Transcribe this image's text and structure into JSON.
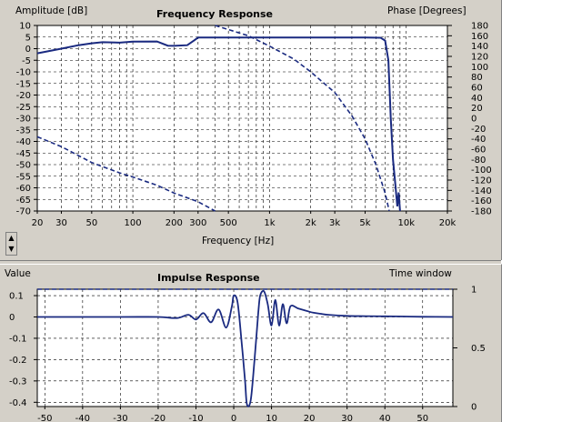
{
  "chart_data": [
    {
      "type": "line",
      "title": "Frequency Response",
      "ylabel": "Amplitude [dB]",
      "y2label": "Phase [Degrees]",
      "xlabel": "Frequency [Hz]",
      "xscale": "log",
      "xlim": [
        20,
        20000
      ],
      "ylim": [
        -70,
        10
      ],
      "y2lim": [
        -180,
        180
      ],
      "x_tick_labels": [
        "20",
        "30",
        "50",
        "100",
        "200",
        "300",
        "500",
        "1k",
        "2k",
        "3k",
        "5k",
        "10k",
        "20k"
      ],
      "x_tick_values": [
        20,
        30,
        50,
        100,
        200,
        300,
        500,
        1000,
        2000,
        3000,
        5000,
        10000,
        20000
      ],
      "y_tick_labels": [
        "10",
        "5",
        "0",
        "-5",
        "-10",
        "-15",
        "-20",
        "-25",
        "-30",
        "-35",
        "-40",
        "-45",
        "-50",
        "-55",
        "-60",
        "-65",
        "-70"
      ],
      "y2_tick_labels": [
        "180",
        "160",
        "140",
        "120",
        "100",
        "80",
        "60",
        "40",
        "20",
        "0",
        "-20",
        "-40",
        "-60",
        "-80",
        "-100",
        "-120",
        "-140",
        "-160",
        "-180"
      ],
      "grid": true,
      "series": [
        {
          "style": "solid",
          "axis": "left",
          "x": [
            20,
            30,
            40,
            50,
            60,
            80,
            100,
            150,
            180,
            200,
            250,
            280,
            300,
            400,
            500,
            700,
            1000,
            2000,
            3000,
            5000,
            6500,
            7000,
            7400,
            7700,
            8000,
            8300,
            8600,
            8800,
            9000
          ],
          "y": [
            -2,
            0,
            1.5,
            2.3,
            2.8,
            2.6,
            3,
            3.1,
            1.3,
            1.2,
            1.5,
            3.5,
            4.8,
            4.8,
            4.8,
            4.8,
            4.8,
            4.8,
            4.8,
            4.8,
            4.7,
            3.5,
            -5,
            -30,
            -48,
            -58,
            -68,
            -62,
            -70
          ]
        },
        {
          "style": "dashed",
          "axis": "right",
          "x": [
            400,
            500,
            700,
            1000,
            1500,
            2000,
            3000,
            4000,
            5000,
            6000,
            7000,
            7500
          ],
          "y": [
            180,
            172,
            160,
            140,
            115,
            90,
            50,
            5,
            -40,
            -90,
            -145,
            -180
          ]
        },
        {
          "style": "dashed",
          "axis": "right",
          "x": [
            20,
            30,
            50,
            80,
            100,
            150,
            200,
            300,
            400
          ],
          "y": [
            -36,
            -55,
            -86,
            -106,
            -114,
            -130,
            -145,
            -162,
            -180
          ]
        }
      ]
    },
    {
      "type": "line",
      "title": "Impulse Response",
      "ylabel": "Value",
      "y2label": "Time window",
      "xlim": [
        -52,
        58
      ],
      "ylim": [
        -0.42,
        0.13
      ],
      "y2lim": [
        0,
        1
      ],
      "x_tick_labels": [
        "-50",
        "-40",
        "-30",
        "-20",
        "-10",
        "0",
        "10",
        "20",
        "30",
        "40",
        "50"
      ],
      "x_tick_values": [
        -50,
        -40,
        -30,
        -20,
        -10,
        0,
        10,
        20,
        30,
        40,
        50
      ],
      "y_tick_labels": [
        "0.1",
        "0",
        "-0.1",
        "-0.2",
        "-0.3",
        "-0.4"
      ],
      "y_tick_values": [
        0.1,
        0,
        -0.1,
        -0.2,
        -0.3,
        -0.4
      ],
      "y2_tick_labels": [
        "1",
        "0.5",
        "0"
      ],
      "y2_tick_values": [
        1,
        0.5,
        0
      ],
      "grid": true,
      "series": [
        {
          "style": "solid",
          "axis": "left",
          "x": [
            -52,
            -30,
            -20,
            -15,
            -12,
            -10,
            -8,
            -6,
            -4,
            -2,
            -0.5,
            0,
            1,
            2,
            3,
            3.5,
            4.5,
            5.5,
            6.5,
            7,
            8,
            9,
            10,
            11,
            12,
            13,
            14,
            15,
            17,
            19,
            21,
            23,
            25,
            30,
            35,
            40,
            45,
            50,
            58
          ],
          "y": [
            0,
            0,
            0,
            -0.005,
            0.01,
            -0.012,
            0.018,
            -0.025,
            0.035,
            -0.05,
            0.05,
            0.1,
            0.07,
            -0.1,
            -0.3,
            -0.41,
            -0.39,
            -0.2,
            0.02,
            0.1,
            0.12,
            0.06,
            -0.04,
            0.08,
            -0.04,
            0.06,
            -0.03,
            0.05,
            0.04,
            0.03,
            0.02,
            0.015,
            0.01,
            0.005,
            0.004,
            0.003,
            0.002,
            0.001,
            0
          ]
        },
        {
          "style": "dashed",
          "axis": "right",
          "x": [
            -52,
            0,
            5,
            58
          ],
          "y": [
            1,
            1,
            1,
            1
          ]
        }
      ]
    }
  ]
}
